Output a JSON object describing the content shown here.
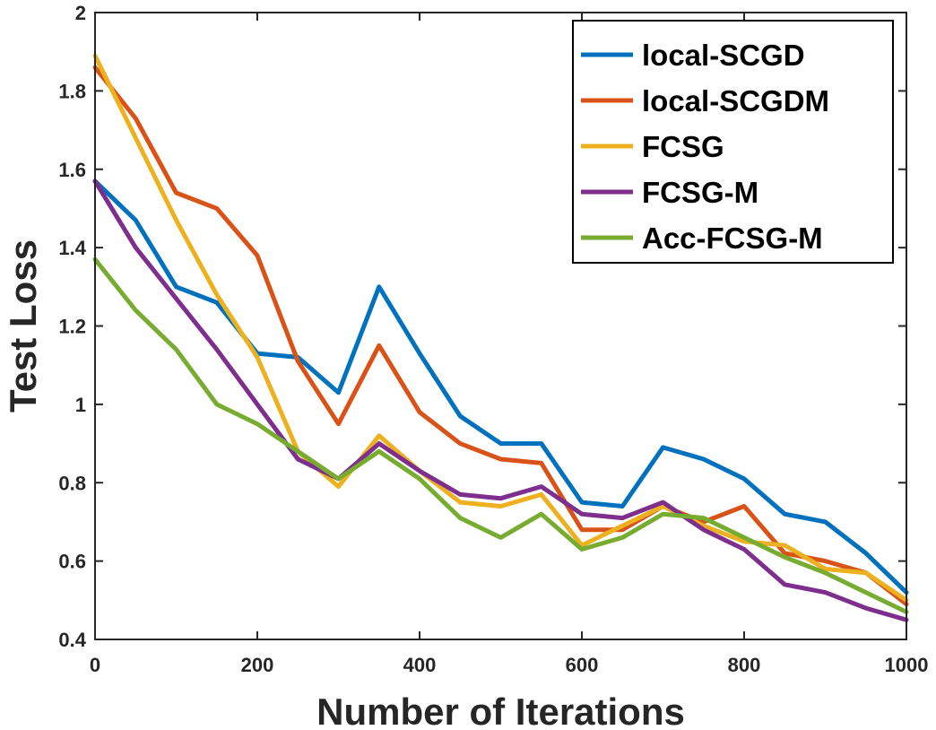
{
  "chart_data": {
    "type": "line",
    "title": "",
    "xlabel": "Number of Iterations",
    "ylabel": "Test Loss",
    "xlim": [
      0,
      1000
    ],
    "ylim": [
      0.4,
      2
    ],
    "xticks": [
      0,
      200,
      400,
      600,
      800,
      1000
    ],
    "xtick_labels": [
      "0",
      "200",
      "400",
      "600",
      "800",
      "1000"
    ],
    "yticks": [
      0.4,
      0.6,
      0.8,
      1.0,
      1.2,
      1.4,
      1.6,
      1.8,
      2.0
    ],
    "ytick_labels": [
      "0.4",
      "0.6",
      "0.8",
      "1",
      "1.2",
      "1.4",
      "1.6",
      "1.8",
      "2"
    ],
    "grid": false,
    "legend_position": "top-right",
    "x": [
      0,
      50,
      100,
      150,
      200,
      250,
      300,
      350,
      400,
      450,
      500,
      550,
      600,
      650,
      700,
      750,
      800,
      850,
      900,
      950,
      1000
    ],
    "series": [
      {
        "name": "local-SCGD",
        "color": "#0072BD",
        "values": [
          1.57,
          1.47,
          1.3,
          1.26,
          1.13,
          1.12,
          1.03,
          1.3,
          1.13,
          0.97,
          0.9,
          0.9,
          0.75,
          0.74,
          0.89,
          0.86,
          0.81,
          0.72,
          0.7,
          0.62,
          0.52
        ]
      },
      {
        "name": "local-SCGDM",
        "color": "#D95319",
        "values": [
          1.86,
          1.73,
          1.54,
          1.5,
          1.38,
          1.11,
          0.95,
          1.15,
          0.98,
          0.9,
          0.86,
          0.85,
          0.68,
          0.68,
          0.74,
          0.7,
          0.74,
          0.62,
          0.6,
          0.57,
          0.49
        ]
      },
      {
        "name": "FCSG",
        "color": "#EDB120",
        "values": [
          1.89,
          1.68,
          1.47,
          1.28,
          1.12,
          0.88,
          0.79,
          0.92,
          0.83,
          0.75,
          0.74,
          0.77,
          0.64,
          0.69,
          0.74,
          0.69,
          0.65,
          0.64,
          0.58,
          0.57,
          0.5
        ]
      },
      {
        "name": "FCSG-M",
        "color": "#7E2F8E",
        "values": [
          1.57,
          1.4,
          1.27,
          1.14,
          1.0,
          0.86,
          0.81,
          0.9,
          0.83,
          0.77,
          0.76,
          0.79,
          0.72,
          0.71,
          0.75,
          0.68,
          0.63,
          0.54,
          0.52,
          0.48,
          0.45
        ]
      },
      {
        "name": "Acc-FCSG-M",
        "color": "#77AC30",
        "values": [
          1.37,
          1.24,
          1.14,
          1.0,
          0.95,
          0.88,
          0.81,
          0.88,
          0.81,
          0.71,
          0.66,
          0.72,
          0.63,
          0.66,
          0.72,
          0.71,
          0.66,
          0.61,
          0.57,
          0.52,
          0.47
        ]
      }
    ]
  }
}
